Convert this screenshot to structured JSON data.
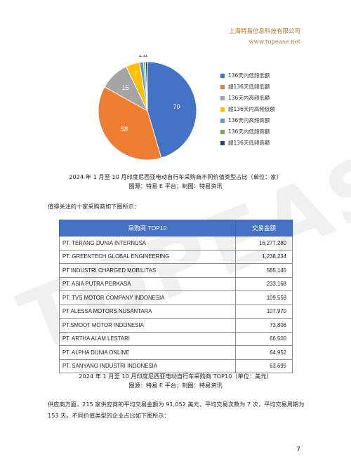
{
  "header": {
    "company": "上海特易信息科技有限公司",
    "url": "www.topease.net"
  },
  "watermark": "TOPEASE",
  "chart_data": {
    "type": "pie",
    "categories": [
      "136天内低频低额",
      "超136天低频低额",
      "136天内高频低额",
      "超136天内高频低额",
      "136天内高频高额",
      "136天内低频高额",
      "超136天低频高额"
    ],
    "values": [
      70,
      58,
      15,
      7,
      2,
      1,
      1
    ],
    "labels": [
      "70",
      "58",
      "15",
      "7",
      "2",
      "1",
      "1"
    ],
    "colors": [
      "#4472c4",
      "#ed7d31",
      "#a5a5a5",
      "#ffc000",
      "#5b9bd5",
      "#70ad47",
      "#264478"
    ],
    "legend_position": "right"
  },
  "captions": {
    "chart_title": "2024 年 1 月至 10 月印度尼西亚电动自行车采购商不同价值类型占比（单位：家）",
    "chart_source": "图源：特易 E 平台；制图：特易资讯",
    "table_title": "2024 年 1 月至 10 月印度尼西亚电动自行车采购商 TOP10（单位：美元）",
    "table_source": "图源：特易 E 平台；制图：特易资讯"
  },
  "intro": "值得关注的十家采购商如下图所示：",
  "table": {
    "headers": [
      "采购商 TOP10",
      "交易金额"
    ],
    "rows": [
      [
        "PT. TERANG DUNIA INTERNUSA",
        "16,277,280"
      ],
      [
        "PT. GREENTECH GLOBAL ENGINEERING",
        "1,238,234"
      ],
      [
        "PT INDUSTRI CHARGED MOBILITAS",
        "585,145"
      ],
      [
        "PT. ASIA PUTRA PERKASA",
        "233,168"
      ],
      [
        "PT. TVS MOTOR COMPANY INDONESIA",
        "109,558"
      ],
      [
        "PT ALESSA MOTORS NUSANTARA",
        "107,970"
      ],
      [
        "PT.SMOOT MOTOR INDONESIA",
        "73,806"
      ],
      [
        "PT. ARTHA ALAM LESTARI",
        "66,500"
      ],
      [
        "PT. ALPHA DUNIA ONLINE",
        "64,952"
      ],
      [
        "PT. SANYANG INDUSTRI INDONESIA",
        "63,695"
      ]
    ]
  },
  "supplier_paragraph": "供应商方面，215 家供应商的平均交易金额为 91,052 美元，平均交易次数为 7 次，平均交易周期为 153 天。不同价值类型的企业占比如下图所示：",
  "page_number": "7"
}
